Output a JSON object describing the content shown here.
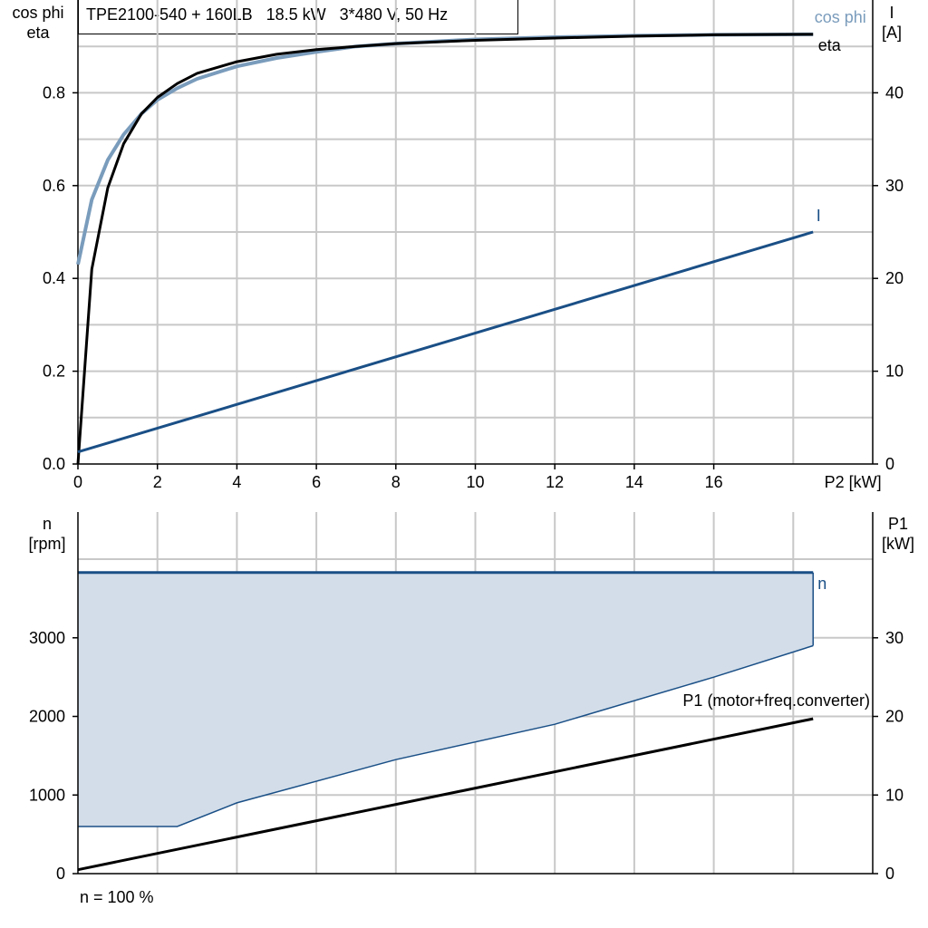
{
  "title": "TPE2100-540 + 160LB   18.5 kW   3*480 V, 50 Hz",
  "footer_note": "n = 100 %",
  "colors": {
    "cos_phi": "#7a9cbc",
    "eta": "#000000",
    "current": "#1a4f86",
    "speed_fill": "#d2dde9",
    "speed_line": "#1a4f86",
    "p1": "#000000",
    "grid": "#c8c8c8"
  },
  "chart_data": [
    {
      "type": "line",
      "xlabel": "P2 [kW]",
      "ylabel_left": [
        "cos phi",
        "eta"
      ],
      "ylabel_right": [
        "I",
        "[A]"
      ],
      "xlim": [
        0,
        20
      ],
      "ylim_left": [
        0,
        1.0
      ],
      "ylim_right": [
        0,
        50
      ],
      "x_ticks": [
        "0",
        "2",
        "4",
        "6",
        "8",
        "10",
        "12",
        "14",
        "16"
      ],
      "y_left_ticks": [
        "0.0",
        "0.2",
        "0.4",
        "0.6",
        "0.8"
      ],
      "y_right_ticks": [
        "0",
        "10",
        "20",
        "30",
        "40"
      ],
      "grid": true,
      "series": [
        {
          "name": "cos phi",
          "axis": "left",
          "x": [
            0.0,
            0.35,
            0.75,
            1.15,
            1.6,
            2.0,
            2.5,
            3.0,
            4.0,
            5.0,
            6.0,
            7.0,
            8.0,
            10.0,
            12.0,
            14.0,
            16.0,
            18.5
          ],
          "y": [
            0.43,
            0.57,
            0.655,
            0.71,
            0.755,
            0.785,
            0.81,
            0.83,
            0.857,
            0.875,
            0.888,
            0.9,
            0.906,
            0.915,
            0.92,
            0.923,
            0.925,
            0.926
          ]
        },
        {
          "name": "eta",
          "axis": "left",
          "x": [
            0.0,
            0.35,
            0.75,
            1.15,
            1.6,
            2.0,
            2.5,
            3.0,
            4.0,
            5.0,
            6.0,
            7.0,
            8.0,
            10.0,
            12.0,
            14.0,
            16.0,
            18.5
          ],
          "y": [
            0.0,
            0.42,
            0.595,
            0.69,
            0.755,
            0.79,
            0.82,
            0.842,
            0.867,
            0.883,
            0.893,
            0.9,
            0.906,
            0.913,
            0.918,
            0.922,
            0.925,
            0.926
          ]
        },
        {
          "name": "I",
          "axis": "right",
          "x": [
            0.0,
            18.5
          ],
          "y": [
            1.3,
            25.0
          ]
        }
      ]
    },
    {
      "type": "area",
      "xlabel": "",
      "ylabel_left": [
        "n",
        "[rpm]"
      ],
      "ylabel_right": [
        "P1",
        "[kW]"
      ],
      "xlim": [
        0,
        20
      ],
      "ylim_left": [
        0,
        4600
      ],
      "ylim_right": [
        0,
        46
      ],
      "y_left_ticks": [
        "0",
        "1000",
        "2000",
        "3000"
      ],
      "y_right_ticks": [
        "0",
        "10",
        "20",
        "30"
      ],
      "grid": true,
      "series": [
        {
          "name": "n",
          "axis": "left",
          "x": [
            0.0,
            18.5
          ],
          "y": [
            3830,
            3830
          ],
          "min_speed": {
            "x": [
              0.0,
              2.5,
              4.0,
              8.0,
              12.0,
              16.0,
              18.5
            ],
            "y": [
              600,
              600,
              900,
              1450,
              1900,
              2500,
              2900
            ]
          }
        },
        {
          "name": "P1 (motor+freq.converter)",
          "axis": "right",
          "x": [
            0.0,
            18.5
          ],
          "y": [
            0.5,
            19.7
          ]
        }
      ]
    }
  ]
}
